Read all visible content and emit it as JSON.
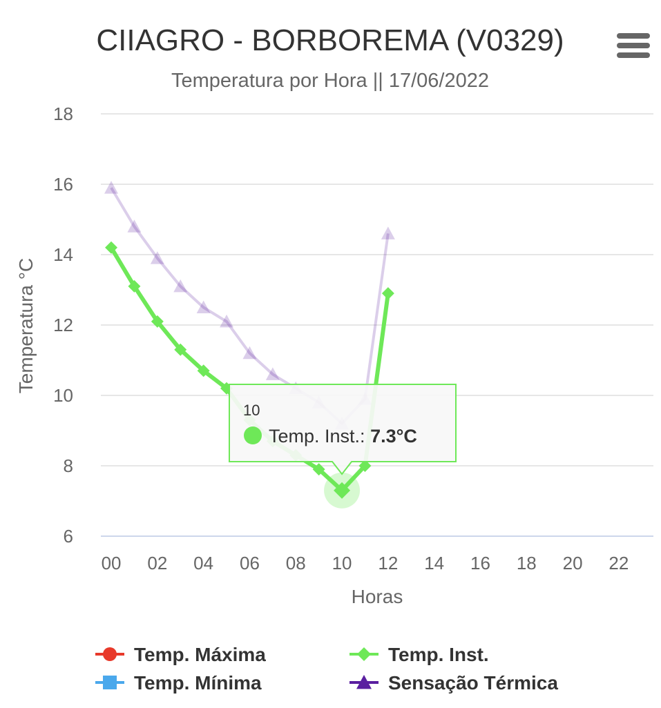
{
  "chart_data": {
    "type": "line",
    "title": "CIIAGRO - BORBOREMA (V0329)",
    "subtitle": "Temperatura por Hora || 17/06/2022",
    "xlabel": "Horas",
    "ylabel": "Temperatura °C",
    "x_tick_labels": [
      "00",
      "02",
      "04",
      "06",
      "08",
      "10",
      "12",
      "14",
      "16",
      "18",
      "20",
      "22"
    ],
    "x_tick_values": [
      0,
      2,
      4,
      6,
      8,
      10,
      12,
      14,
      16,
      18,
      20,
      22
    ],
    "xlim": [
      -0.45,
      23.5
    ],
    "y_tick_labels": [
      "6",
      "8",
      "10",
      "12",
      "14",
      "16",
      "18"
    ],
    "y_tick_values": [
      6,
      8,
      10,
      12,
      14,
      16,
      18
    ],
    "ylim": [
      6,
      18
    ],
    "grid": true,
    "legend_position": "bottom",
    "series": [
      {
        "name": "Temp. Máxima",
        "color": "#e8392a",
        "marker": "circle",
        "x": [],
        "values": []
      },
      {
        "name": "Temp. Mínima",
        "color": "#4aa8ec",
        "marker": "square",
        "x": [],
        "values": []
      },
      {
        "name": "Temp. Inst.",
        "color": "#6ee858",
        "marker": "diamond",
        "x": [
          0,
          1,
          2,
          3,
          4,
          5,
          6,
          7,
          8,
          9,
          10,
          11,
          12
        ],
        "values": [
          14.2,
          13.1,
          12.1,
          11.3,
          10.7,
          10.2,
          9.3,
          8.7,
          8.3,
          7.9,
          7.3,
          8.0,
          12.9
        ]
      },
      {
        "name": "Sensação Térmica",
        "color": "#5a1fa0",
        "marker": "triangle",
        "dimmed": true,
        "x": [
          0,
          1,
          2,
          3,
          4,
          5,
          6,
          7,
          8,
          9,
          10,
          11,
          12
        ],
        "values": [
          15.9,
          14.8,
          13.9,
          13.1,
          12.5,
          12.1,
          11.2,
          10.6,
          10.2,
          9.8,
          9.2,
          9.9,
          14.6
        ]
      }
    ],
    "tooltip": {
      "header": "10",
      "series_label": "Temp. Inst.:",
      "value_text": "7.3°C",
      "x": 10,
      "y": 7.3
    }
  },
  "menu_icon": "hamburger-menu-icon"
}
